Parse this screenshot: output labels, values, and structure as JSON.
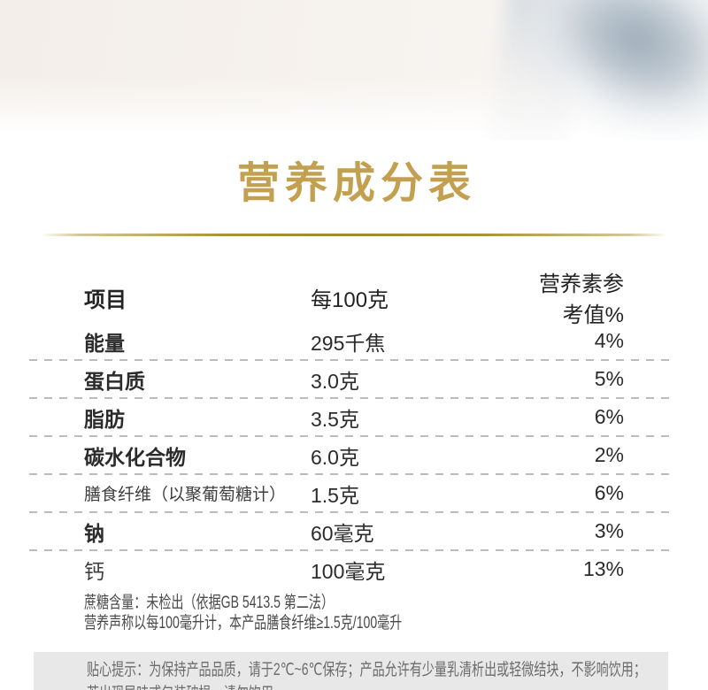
{
  "title": {
    "text": "营养成分表"
  },
  "colors": {
    "title_gold": "#c2a04f",
    "divider_gold": "#a8903b",
    "table_text": "#2b2b2b",
    "light_text": "#4a4a4a",
    "tip_text": "#6b6b6b",
    "tip_background": "#e8e8e8",
    "dash_color": "#bcbcbc"
  },
  "table": {
    "headers": {
      "item": "项目",
      "per_100g": "每100克",
      "nrv_percent": "营养素参考值%"
    },
    "rows": [
      {
        "label": "能量",
        "value": "295千焦",
        "nrv": "4%"
      },
      {
        "label": "蛋白质",
        "value": "3.0克",
        "nrv": "5%"
      },
      {
        "label": "脂肪",
        "value": "3.5克",
        "nrv": "6%"
      },
      {
        "label": "碳水化合物",
        "value": "6.0克",
        "nrv": "2%"
      },
      {
        "label": "膳食纤维（以聚葡萄糖计）",
        "value": "1.5克",
        "nrv": "6%"
      },
      {
        "label": "钠",
        "value": "60毫克",
        "nrv": "3%"
      },
      {
        "label": "钙",
        "value": "100毫克",
        "nrv": "13%"
      }
    ]
  },
  "notes": [
    "蔗糖含量：未检出（依据GB 5413.5 第二法）",
    "营养声称以每100毫升计，本产品膳食纤维≥1.5克/100毫升"
  ],
  "tip": {
    "lines": [
      "贴心提示：为保持产品品质，请于2℃~6℃保存；产品允许有少量乳清析出或轻微结块，不影响饮用；",
      "若出现异味或包装破损，请勿饮用"
    ]
  }
}
